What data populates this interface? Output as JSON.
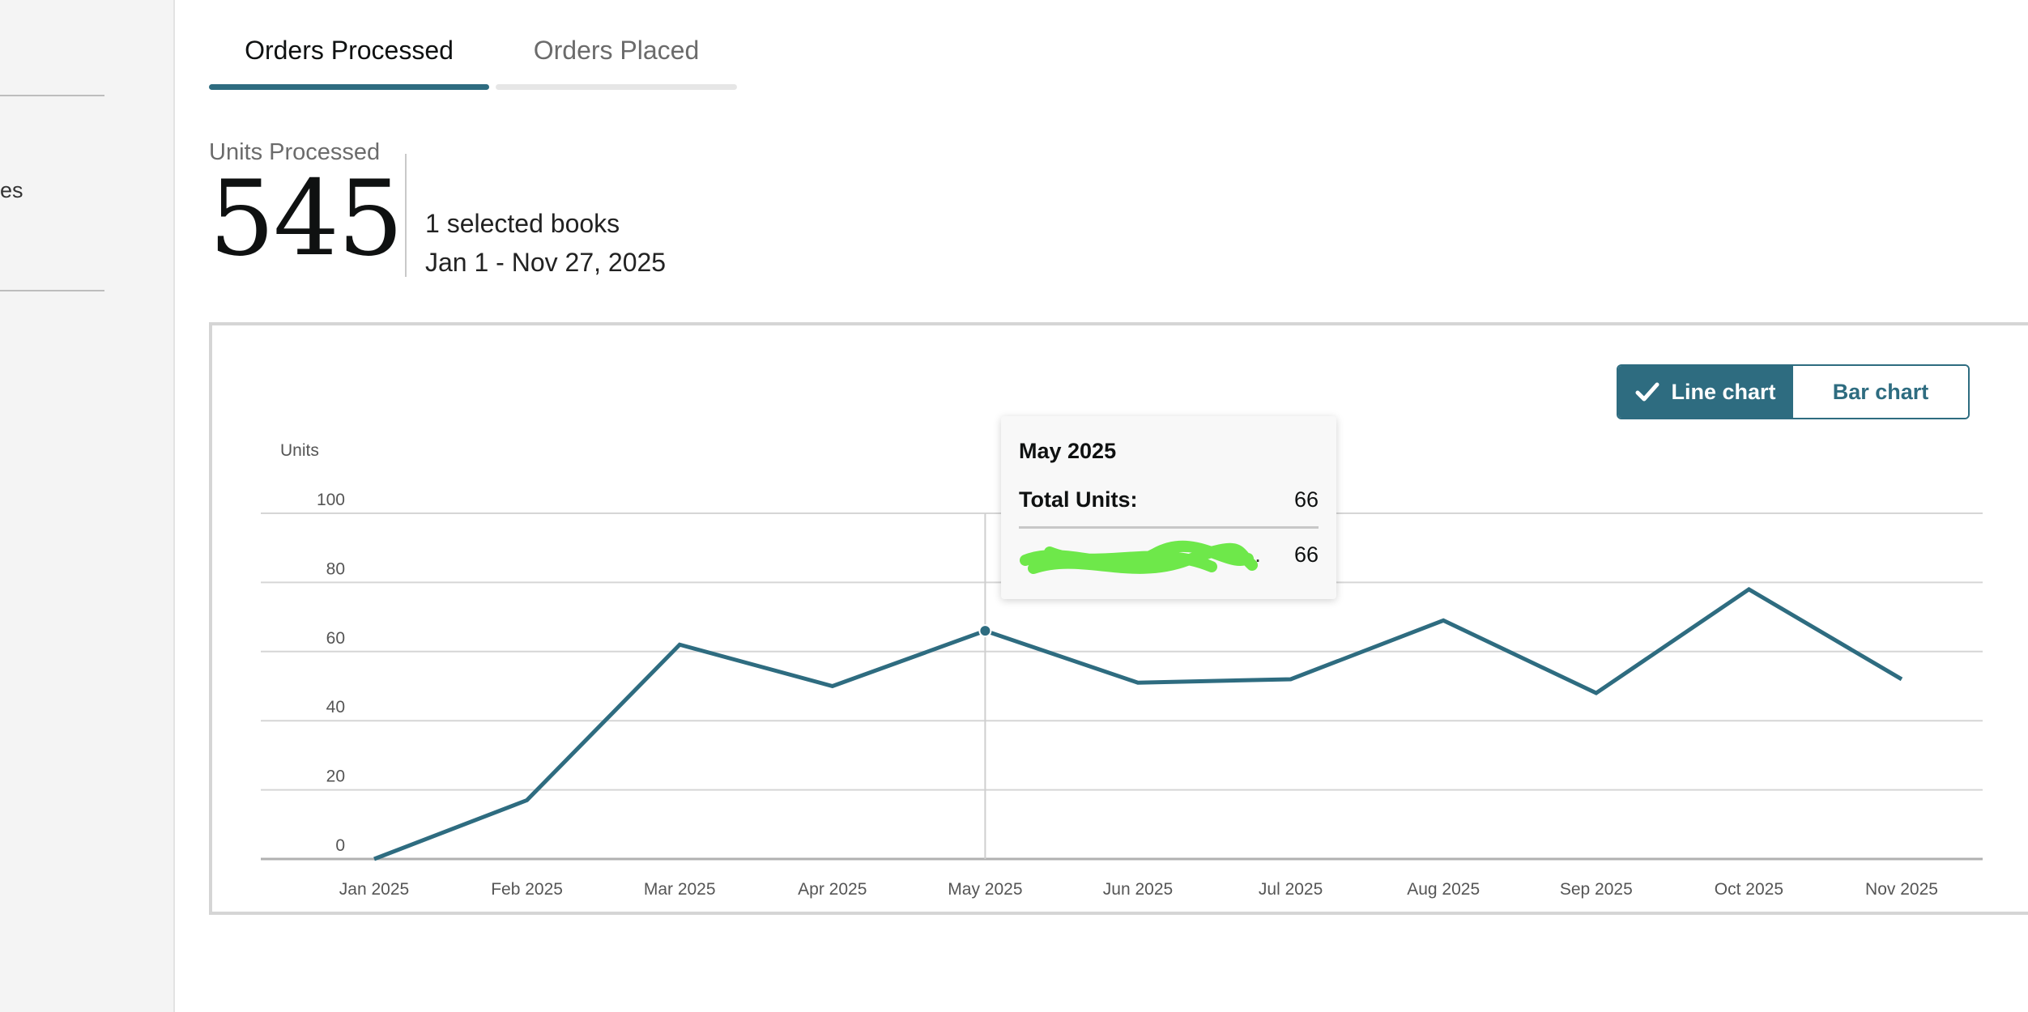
{
  "sidebar": {
    "partial_text": "es"
  },
  "tabs": [
    {
      "label": "Orders Processed",
      "active": true
    },
    {
      "label": "Orders Placed",
      "active": false
    }
  ],
  "summary": {
    "label": "Units Processed",
    "value": "545",
    "selection": "1 selected books",
    "date_range": "Jan 1 - Nov 27, 2025"
  },
  "chart_toggle": {
    "line_label": "Line chart",
    "bar_label": "Bar chart",
    "selected": "line"
  },
  "colors": {
    "accent": "#2e6c80",
    "tab_inactive_bar": "#e6e6e6",
    "grid": "#d6d6d6",
    "redaction": "#6ee84a"
  },
  "tooltip": {
    "month": "May 2025",
    "total_label": "Total Units:",
    "total_value": "66",
    "book_title": "…",
    "book_value": "66"
  },
  "chart_data": {
    "type": "line",
    "ylabel": "Units",
    "ylim": [
      0,
      100
    ],
    "yticks": [
      0,
      20,
      40,
      60,
      80,
      100
    ],
    "categories": [
      "Jan 2025",
      "Feb 2025",
      "Mar 2025",
      "Apr 2025",
      "May 2025",
      "Jun 2025",
      "Jul 2025",
      "Aug 2025",
      "Sep 2025",
      "Oct 2025",
      "Nov 2025"
    ],
    "series": [
      {
        "values": [
          0,
          17,
          62,
          50,
          66,
          51,
          52,
          69,
          48,
          78,
          52
        ]
      }
    ],
    "highlighted_category": "May 2025",
    "grid": true
  }
}
